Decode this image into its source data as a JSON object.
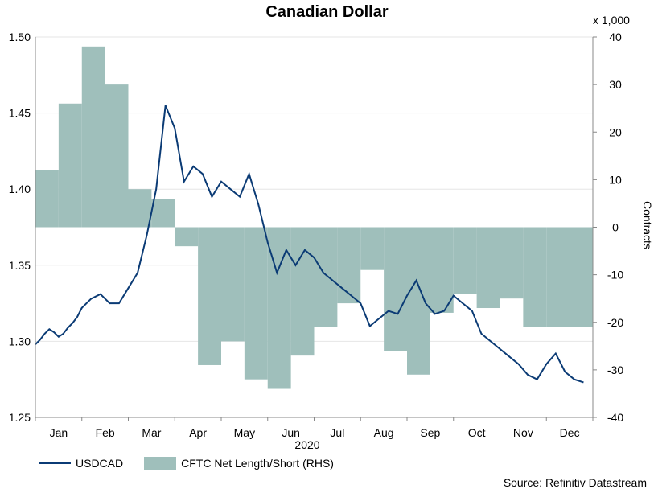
{
  "chart_data": {
    "type": "line+area",
    "title": "Canadian Dollar",
    "xlabel": "2020",
    "right_ylabel": "Contracts",
    "right_multiplier": "x 1,000",
    "source": "Source: Refinitiv Datastream",
    "months": [
      "Jan",
      "Feb",
      "Mar",
      "Apr",
      "May",
      "Jun",
      "Jul",
      "Aug",
      "Sep",
      "Oct",
      "Nov",
      "Dec"
    ],
    "left_axis": {
      "ylim": [
        1.25,
        1.5
      ],
      "ticks": [
        "1.25",
        "1.30",
        "1.35",
        "1.40",
        "1.45",
        "1.50"
      ]
    },
    "right_axis": {
      "ylim": [
        -40,
        40
      ],
      "ticks": [
        "-40",
        "-30",
        "-20",
        "-10",
        "0",
        "10",
        "20",
        "30",
        "40"
      ]
    },
    "colors": {
      "line": "#0b3b75",
      "area": "#9fbfbb",
      "grid": "#e6e6e6",
      "plot_bg": "#ffffff"
    },
    "series": [
      {
        "name": "USDCAD",
        "axis": "left",
        "x": [
          0.0,
          0.1,
          0.2,
          0.3,
          0.4,
          0.5,
          0.6,
          0.7,
          0.8,
          0.9,
          1.0,
          1.2,
          1.4,
          1.6,
          1.8,
          2.0,
          2.2,
          2.4,
          2.6,
          2.8,
          3.0,
          3.2,
          3.4,
          3.6,
          3.8,
          4.0,
          4.2,
          4.4,
          4.6,
          4.8,
          5.0,
          5.2,
          5.4,
          5.6,
          5.8,
          6.0,
          6.2,
          6.4,
          6.6,
          6.8,
          7.0,
          7.2,
          7.4,
          7.6,
          7.8,
          8.0,
          8.2,
          8.4,
          8.6,
          8.8,
          9.0,
          9.2,
          9.4,
          9.6,
          9.8,
          10.0,
          10.2,
          10.4,
          10.6,
          10.8,
          11.0,
          11.2,
          11.4,
          11.6,
          11.8
        ],
        "values": [
          1.298,
          1.301,
          1.305,
          1.308,
          1.306,
          1.303,
          1.305,
          1.309,
          1.312,
          1.316,
          1.322,
          1.328,
          1.331,
          1.325,
          1.325,
          1.335,
          1.345,
          1.37,
          1.4,
          1.455,
          1.44,
          1.405,
          1.415,
          1.41,
          1.395,
          1.405,
          1.4,
          1.395,
          1.41,
          1.39,
          1.365,
          1.345,
          1.36,
          1.35,
          1.36,
          1.355,
          1.345,
          1.34,
          1.335,
          1.33,
          1.325,
          1.31,
          1.315,
          1.32,
          1.318,
          1.33,
          1.34,
          1.325,
          1.318,
          1.32,
          1.33,
          1.325,
          1.32,
          1.305,
          1.3,
          1.295,
          1.29,
          1.285,
          1.278,
          1.275,
          1.285,
          1.292,
          1.28,
          1.275,
          1.273
        ]
      },
      {
        "name": "CFTC Net Length/Short (RHS)",
        "axis": "right",
        "type": "step-area",
        "x": [
          0.0,
          0.5,
          1.0,
          1.5,
          2.0,
          2.5,
          3.0,
          3.5,
          4.0,
          4.5,
          5.0,
          5.5,
          6.0,
          6.5,
          7.0,
          7.5,
          8.0,
          8.5,
          9.0,
          9.5,
          10.0,
          10.5,
          11.0,
          11.5
        ],
        "values": [
          12,
          26,
          38,
          30,
          8,
          6,
          -4,
          -29,
          -24,
          -32,
          -34,
          -27,
          -21,
          -16,
          -9,
          -26,
          -31,
          -18,
          -14,
          -17,
          -15,
          -21,
          -21,
          -21
        ]
      }
    ]
  }
}
